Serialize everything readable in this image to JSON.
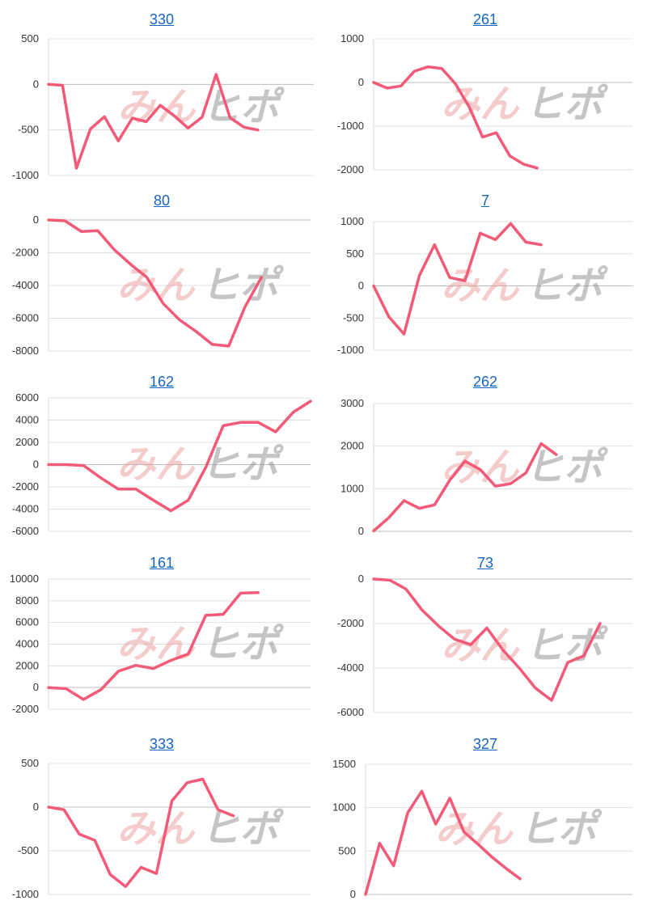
{
  "watermark": {
    "pink": "みん",
    "gray": "ヒポ"
  },
  "line_color": "#f25a78",
  "chart_data": [
    {
      "type": "line",
      "title": "330",
      "ylim": [
        -1000,
        500
      ],
      "yticks": [
        500,
        0,
        -500,
        -1000
      ],
      "x_count": 20,
      "values": [
        0,
        -10,
        -920,
        -490,
        -355,
        -620,
        -370,
        -410,
        -230,
        -345,
        -480,
        -360,
        110,
        -365,
        -470,
        -500
      ]
    },
    {
      "type": "line",
      "title": "261",
      "ylim": [
        -2000,
        1000
      ],
      "yticks": [
        1000,
        0,
        -1000,
        -2000
      ],
      "x_count": 20,
      "values": [
        0,
        -130,
        -80,
        260,
        360,
        320,
        -30,
        -550,
        -1250,
        -1150,
        -1680,
        -1870,
        -1960
      ]
    },
    {
      "type": "line",
      "title": "80",
      "ylim": [
        -8000,
        0
      ],
      "yticks": [
        0,
        -2000,
        -4000,
        -6000,
        -8000
      ],
      "x_count": 17,
      "values": [
        0,
        -50,
        -700,
        -650,
        -1800,
        -2700,
        -3500,
        -5100,
        -6100,
        -6800,
        -7600,
        -7700,
        -5300,
        -3500
      ]
    },
    {
      "type": "line",
      "title": "7",
      "ylim": [
        -1000,
        1000
      ],
      "yticks": [
        1000,
        500,
        0,
        -500,
        -1000
      ],
      "x_count": 18,
      "values": [
        0,
        -480,
        -750,
        160,
        640,
        130,
        80,
        820,
        720,
        970,
        680,
        640
      ]
    },
    {
      "type": "line",
      "title": "162",
      "ylim": [
        -6000,
        6000
      ],
      "yticks": [
        6000,
        4000,
        2000,
        0,
        -2000,
        -4000,
        -6000
      ],
      "x_count": 16,
      "values": [
        0,
        0,
        -80,
        -1200,
        -2200,
        -2200,
        -3200,
        -4150,
        -3200,
        -250,
        3500,
        3800,
        3800,
        2950,
        4700,
        5700
      ]
    },
    {
      "type": "line",
      "title": "262",
      "ylim": [
        0,
        3000
      ],
      "yticks": [
        3000,
        2000,
        1000,
        0
      ],
      "x_count": 18,
      "values": [
        10,
        320,
        720,
        540,
        620,
        1200,
        1650,
        1450,
        1060,
        1120,
        1370,
        2060,
        1800
      ]
    },
    {
      "type": "line",
      "title": "161",
      "ylim": [
        -2000,
        10000
      ],
      "yticks": [
        10000,
        8000,
        6000,
        4000,
        2000,
        0,
        -2000
      ],
      "x_count": 16,
      "values": [
        0,
        -100,
        -1100,
        -200,
        1500,
        2050,
        1750,
        2500,
        3100,
        6650,
        6750,
        8700,
        8750
      ]
    },
    {
      "type": "line",
      "title": "73",
      "ylim": [
        -6000,
        0
      ],
      "yticks": [
        0,
        -2000,
        -4000,
        -6000
      ],
      "x_count": 17,
      "values": [
        0,
        -50,
        -450,
        -1400,
        -2100,
        -2700,
        -2950,
        -2200,
        -3200,
        -4000,
        -4900,
        -5450,
        -3750,
        -3450,
        -2000
      ]
    },
    {
      "type": "line",
      "title": "333",
      "ylim": [
        -1000,
        500
      ],
      "yticks": [
        500,
        0,
        -500,
        -1000
      ],
      "x_count": 18,
      "values": [
        0,
        -30,
        -310,
        -380,
        -770,
        -910,
        -690,
        -760,
        70,
        280,
        320,
        -30,
        -100
      ]
    },
    {
      "type": "line",
      "title": "327",
      "ylim": [
        0,
        1500
      ],
      "yticks": [
        1500,
        1000,
        500,
        0
      ],
      "x_count": 20,
      "values": [
        0,
        590,
        330,
        940,
        1190,
        810,
        1110,
        720,
        580,
        430,
        300,
        180
      ]
    }
  ]
}
